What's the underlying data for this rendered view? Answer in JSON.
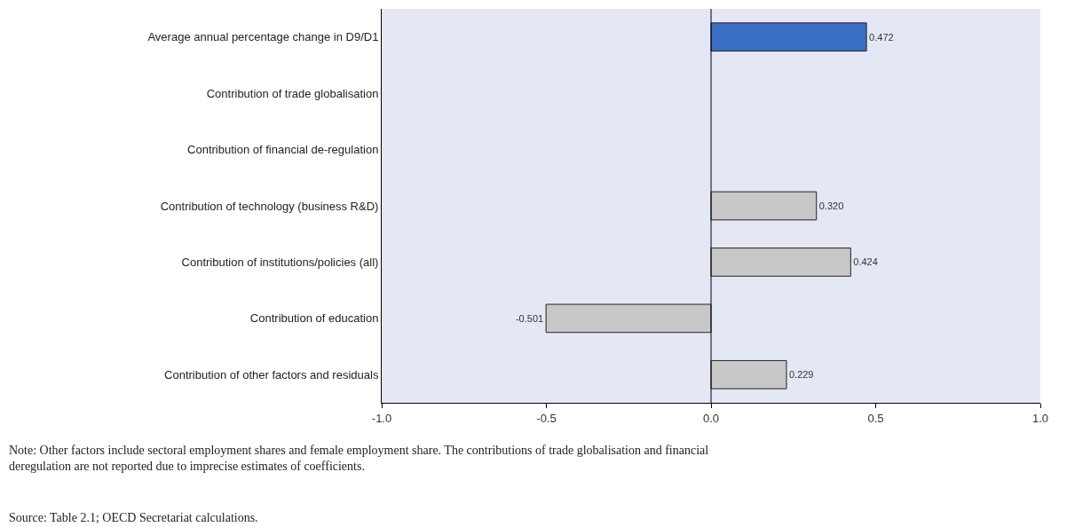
{
  "chart_data": {
    "type": "bar",
    "orientation": "horizontal",
    "categories": [
      "Average annual percentage change in D9/D1",
      "Contribution of trade globalisation",
      "Contribution of financial de-regulation",
      "Contribution of technology (business R&D)",
      "Contribution of institutions/policies (all)",
      "Contribution of education",
      "Contribution of other factors and residuals"
    ],
    "values": [
      0.472,
      null,
      null,
      0.32,
      0.424,
      -0.501,
      0.229
    ],
    "value_labels": [
      "0.472",
      null,
      null,
      "0.320",
      "0.424",
      "-0.501",
      "0.229"
    ],
    "colors": [
      "#3b6fc6",
      "#c8c8c8",
      "#c8c8c8",
      "#c8c8c8",
      "#c8c8c8",
      "#c8c8c8",
      "#c8c8c8"
    ],
    "xlim": [
      -1.0,
      1.0
    ],
    "xticks": [
      {
        "value": -1,
        "label": "-1.0"
      },
      {
        "value": -0.5,
        "label": "-0.5"
      },
      {
        "value": 0,
        "label": "0.0"
      },
      {
        "value": 0.5,
        "label": "0.5"
      },
      {
        "value": 1,
        "label": "1.0"
      }
    ],
    "grid": false,
    "legend": false,
    "ref_lines": [
      {
        "axis": "x",
        "value": 0,
        "color": "#000000"
      }
    ],
    "annotations": [
      "Note: Other factors include sectoral employment shares and female employment share. The contributions of trade globalisation and financial deregulation are not reported due to imprecise estimates of coefficients.",
      "Source: Table 2.1; OECD Secretariat calculations."
    ]
  }
}
